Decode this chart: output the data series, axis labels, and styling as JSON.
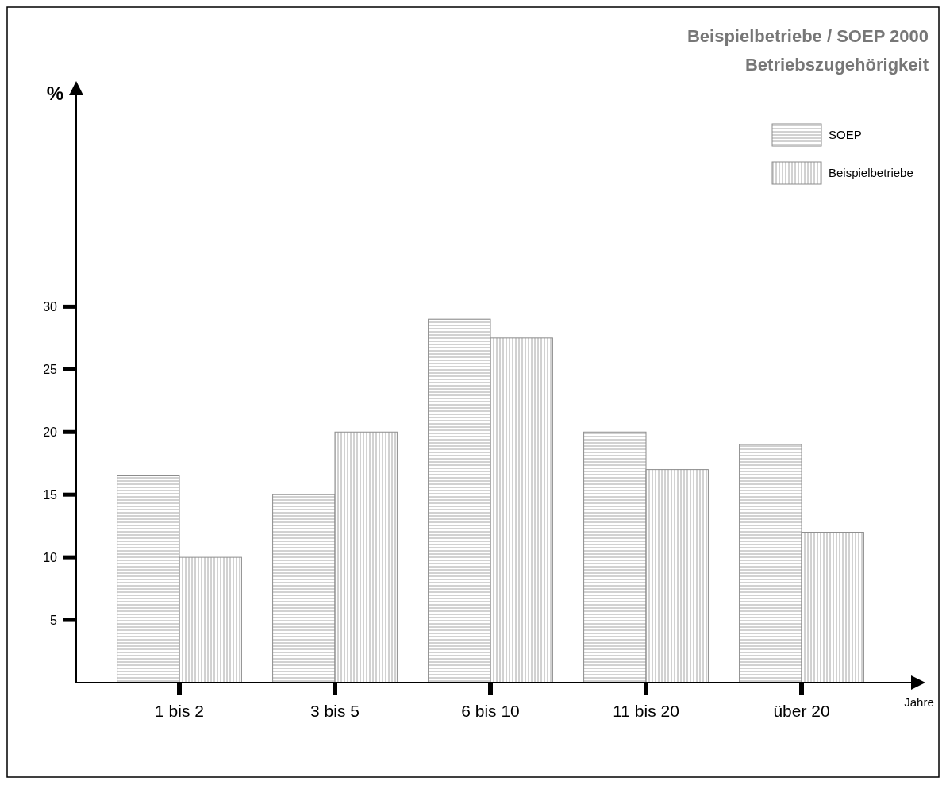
{
  "chart_data": {
    "type": "bar",
    "title": "Beispielbetriebe / SOEP 2000",
    "subtitle": "Betriebszugehörigkeit",
    "xlabel": "Jahre",
    "ylabel": "%",
    "categories": [
      "1 bis 2",
      "3 bis 5",
      "6 bis 10",
      "11 bis 20",
      "über 20"
    ],
    "series": [
      {
        "name": "SOEP",
        "color": "#8c8c8c",
        "values": [
          16.5,
          15,
          29,
          20,
          19
        ]
      },
      {
        "name": "Beispielbetriebe",
        "color": "#8c8c8c",
        "values": [
          10,
          20,
          27.5,
          17,
          12
        ]
      }
    ],
    "ylim": [
      0,
      47
    ],
    "yticks": [
      5,
      10,
      15,
      20,
      25,
      30
    ],
    "grid": false,
    "legend": "top right"
  }
}
